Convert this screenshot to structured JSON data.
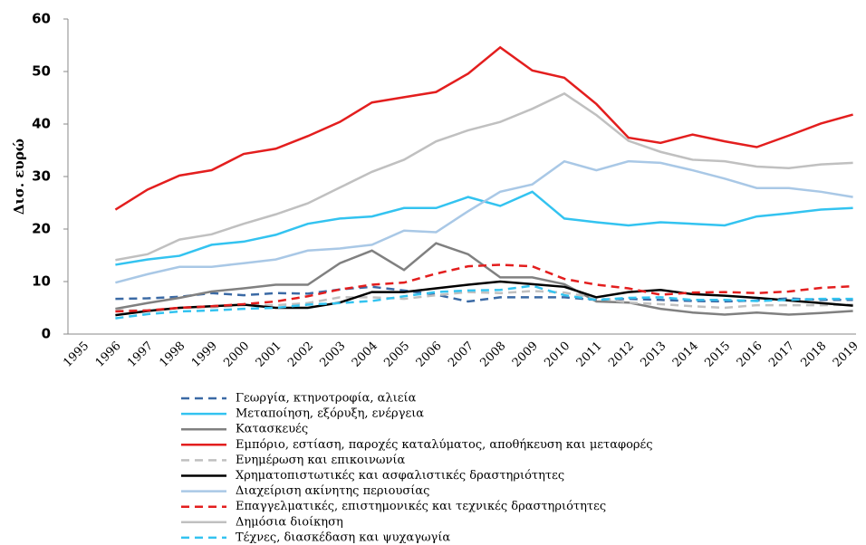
{
  "chart_data": {
    "type": "line",
    "y_label": "Δισ. ευρώ",
    "categories": [
      "1995",
      "1996",
      "1997",
      "1998",
      "1999",
      "2000",
      "2001",
      "2002",
      "2003",
      "2004",
      "2005",
      "2006",
      "2007",
      "2008",
      "2009",
      "2010",
      "2011",
      "2012",
      "2013",
      "2014",
      "2015",
      "2016",
      "2017",
      "2018",
      "2019"
    ],
    "ylim": [
      0,
      60
    ],
    "yticks": [
      0,
      10,
      20,
      30,
      40,
      50,
      60
    ],
    "grid": false,
    "legend": "bottom",
    "series": [
      {
        "name": "Γεωργία, κτηνοτροφία, αλιεία",
        "color": "#3b6aa5",
        "style": "dashed",
        "values": [
          null,
          6.7,
          6.8,
          7.1,
          7.8,
          7.4,
          7.8,
          7.7,
          8.5,
          9.0,
          8.3,
          7.5,
          6.2,
          7.0,
          7.0,
          7.0,
          6.5,
          6.7,
          6.5,
          6.3,
          6.2,
          6.4,
          6.8,
          6.5,
          6.5
        ]
      },
      {
        "name": "Μεταποίηση, εξόρυξη, ενέργεια",
        "color": "#33c3f0",
        "style": "solid",
        "values": [
          null,
          13.2,
          14.2,
          14.9,
          17.0,
          17.6,
          18.9,
          21.0,
          22.0,
          22.4,
          24.0,
          24.0,
          26.1,
          24.4,
          27.1,
          22.0,
          21.3,
          20.7,
          21.3,
          21.0,
          20.7,
          22.4,
          23.0,
          23.7,
          24.0
        ]
      },
      {
        "name": "Κατασκευές",
        "color": "#808080",
        "style": "solid",
        "values": [
          null,
          4.8,
          5.9,
          6.9,
          8.1,
          8.7,
          9.4,
          9.4,
          13.5,
          15.9,
          12.2,
          17.3,
          15.2,
          10.8,
          10.8,
          9.5,
          6.2,
          6.0,
          4.8,
          4.1,
          3.7,
          4.1,
          3.7,
          4.0,
          4.4
        ]
      },
      {
        "name": "Εμπόριο, εστίαση, παροχές καταλύματος, αποθήκευση και μεταφορές",
        "color": "#e31e1e",
        "style": "solid",
        "values": [
          null,
          23.7,
          27.5,
          30.2,
          31.2,
          34.3,
          35.3,
          37.7,
          40.4,
          44.1,
          45.1,
          46.1,
          49.6,
          54.6,
          50.2,
          48.8,
          43.8,
          37.4,
          36.4,
          38.0,
          36.7,
          35.6,
          37.8,
          40.1,
          41.8
        ]
      },
      {
        "name": "Ενημέρωση και επικοινωνία",
        "color": "#c0c0c0",
        "style": "dashed",
        "values": [
          null,
          4.5,
          4.5,
          5.0,
          5.1,
          5.5,
          5.5,
          5.9,
          7.0,
          7.0,
          6.7,
          7.4,
          8.0,
          7.8,
          8.2,
          7.9,
          6.9,
          6.0,
          5.7,
          5.3,
          5.0,
          5.5,
          5.5,
          5.5,
          5.6
        ]
      },
      {
        "name": "Χρηματοπιστωτικές και ασφαλιστικές δραστηριότητες",
        "color": "#000000",
        "style": "solid",
        "values": [
          null,
          3.6,
          4.4,
          5.0,
          5.3,
          5.6,
          5.0,
          5.0,
          6.0,
          8.0,
          8.0,
          8.7,
          9.4,
          10.0,
          9.5,
          9.0,
          7.0,
          8.0,
          8.4,
          7.6,
          7.3,
          6.9,
          6.4,
          5.9,
          5.4
        ]
      },
      {
        "name": "Διαχείριση ακίνητης περιουσίας",
        "color": "#a9c8e6",
        "style": "solid",
        "values": [
          null,
          9.8,
          11.4,
          12.8,
          12.8,
          13.5,
          14.2,
          15.9,
          16.3,
          17.0,
          19.7,
          19.4,
          23.4,
          27.1,
          28.5,
          32.9,
          31.2,
          32.9,
          32.6,
          31.2,
          29.6,
          27.8,
          27.8,
          27.1,
          26.1
        ]
      },
      {
        "name": "Επαγγελματικές, επιστημονικές και τεχνικές δραστηριότητες",
        "color": "#e31e1e",
        "style": "dashed",
        "values": [
          null,
          4.3,
          4.5,
          5.0,
          5.3,
          5.7,
          6.2,
          7.2,
          8.5,
          9.4,
          9.8,
          11.5,
          12.9,
          13.2,
          12.9,
          10.5,
          9.4,
          8.7,
          7.5,
          7.9,
          8.0,
          7.8,
          8.1,
          8.8,
          9.1
        ]
      },
      {
        "name": "Δημόσια διοίκηση",
        "color": "#c0c0c0",
        "style": "solid",
        "values": [
          null,
          14.1,
          15.2,
          18.0,
          19.0,
          21.0,
          22.8,
          24.9,
          27.9,
          30.9,
          33.2,
          36.7,
          38.8,
          40.4,
          42.9,
          45.8,
          41.7,
          36.8,
          34.7,
          33.2,
          32.9,
          31.9,
          31.6,
          32.3,
          32.6
        ]
      },
      {
        "name": "Τέχνες, διασκέδαση και ψυχαγωγία",
        "color": "#33c3f0",
        "style": "dashed",
        "values": [
          null,
          3.0,
          3.8,
          4.3,
          4.5,
          4.8,
          5.0,
          5.6,
          5.9,
          6.3,
          7.2,
          8.0,
          8.3,
          8.4,
          9.2,
          7.4,
          6.5,
          6.9,
          7.0,
          6.5,
          6.5,
          6.3,
          6.5,
          6.7,
          6.7
        ]
      }
    ]
  }
}
